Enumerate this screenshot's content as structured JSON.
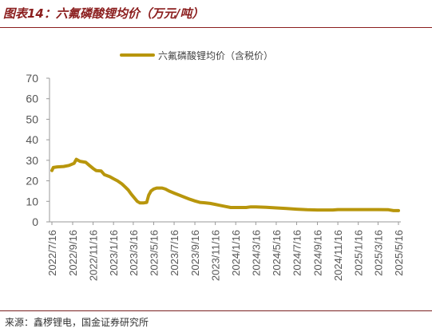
{
  "figure": {
    "title": "图表14：六氟磷酸锂均价（万元/吨）",
    "source": "来源：鑫椤锂电，国金证券研究所"
  },
  "colors": {
    "title": "#8B1E1E",
    "series": "#B8960C",
    "axis": "#999999",
    "tick_text": "#555555"
  },
  "chart_data": {
    "type": "line",
    "title": "",
    "xlabel": "",
    "ylabel": "",
    "ylim": [
      0,
      70
    ],
    "yticks": [
      0,
      10,
      20,
      30,
      40,
      50,
      60,
      70
    ],
    "grid": false,
    "legend": "top-center",
    "x_tick_labels": [
      "2022/7/16",
      "2022/9/16",
      "2022/11/16",
      "2023/1/16",
      "2023/3/16",
      "2023/5/16",
      "2023/7/16",
      "2023/9/16",
      "2023/11/16",
      "2024/1/16",
      "2024/3/16",
      "2024/5/16",
      "2024/7/16",
      "2024/9/16",
      "2024/11/16",
      "2025/1/16",
      "2025/3/16",
      "2025/5/16"
    ],
    "series": [
      {
        "name": "六氟磷酸锂均价（含税价）",
        "color": "#B8960C",
        "points": [
          [
            "2022/7/16",
            25
          ],
          [
            "2022/7/20",
            26.5
          ],
          [
            "2022/8/1",
            26.8
          ],
          [
            "2022/8/20",
            27
          ],
          [
            "2022/9/5",
            27.5
          ],
          [
            "2022/9/20",
            28.5
          ],
          [
            "2022/9/27",
            30.5
          ],
          [
            "2022/10/8",
            29.5
          ],
          [
            "2022/10/25",
            29
          ],
          [
            "2022/11/5",
            27.5
          ],
          [
            "2022/11/16",
            26
          ],
          [
            "2022/11/25",
            25
          ],
          [
            "2022/12/10",
            24.8
          ],
          [
            "2022/12/20",
            23
          ],
          [
            "2023/1/5",
            22
          ],
          [
            "2023/1/16",
            21
          ],
          [
            "2023/1/28",
            20
          ],
          [
            "2023/2/10",
            18.5
          ],
          [
            "2023/2/20",
            17
          ],
          [
            "2023/3/1",
            15.5
          ],
          [
            "2023/3/10",
            13.5
          ],
          [
            "2023/3/20",
            11.5
          ],
          [
            "2023/3/28",
            10
          ],
          [
            "2023/4/5",
            9.2
          ],
          [
            "2023/4/15",
            9.2
          ],
          [
            "2023/4/25",
            9.5
          ],
          [
            "2023/5/1",
            13
          ],
          [
            "2023/5/8",
            15
          ],
          [
            "2023/5/16",
            16
          ],
          [
            "2023/5/25",
            16.5
          ],
          [
            "2023/6/10",
            16.5
          ],
          [
            "2023/6/20",
            16
          ],
          [
            "2023/7/1",
            15
          ],
          [
            "2023/7/16",
            14
          ],
          [
            "2023/8/1",
            13
          ],
          [
            "2023/8/16",
            12
          ],
          [
            "2023/9/1",
            11
          ],
          [
            "2023/9/16",
            10.2
          ],
          [
            "2023/10/1",
            9.5
          ],
          [
            "2023/10/16",
            9.3
          ],
          [
            "2023/11/1",
            9
          ],
          [
            "2023/11/16",
            8.5
          ],
          [
            "2023/12/1",
            8
          ],
          [
            "2023/12/16",
            7.5
          ],
          [
            "2024/1/1",
            7
          ],
          [
            "2024/1/16",
            7
          ],
          [
            "2024/2/16",
            7
          ],
          [
            "2024/3/1",
            7.3
          ],
          [
            "2024/3/16",
            7.3
          ],
          [
            "2024/4/16",
            7.1
          ],
          [
            "2024/5/16",
            6.8
          ],
          [
            "2024/6/16",
            6.5
          ],
          [
            "2024/7/16",
            6.2
          ],
          [
            "2024/8/16",
            5.9
          ],
          [
            "2024/9/16",
            5.8
          ],
          [
            "2024/10/16",
            5.8
          ],
          [
            "2024/11/1",
            5.8
          ],
          [
            "2024/11/16",
            6
          ],
          [
            "2024/12/16",
            6
          ],
          [
            "2025/1/16",
            6
          ],
          [
            "2025/2/16",
            6
          ],
          [
            "2025/3/16",
            6
          ],
          [
            "2025/4/16",
            5.9
          ],
          [
            "2025/5/1",
            5.5
          ],
          [
            "2025/5/16",
            5.5
          ]
        ]
      }
    ]
  }
}
